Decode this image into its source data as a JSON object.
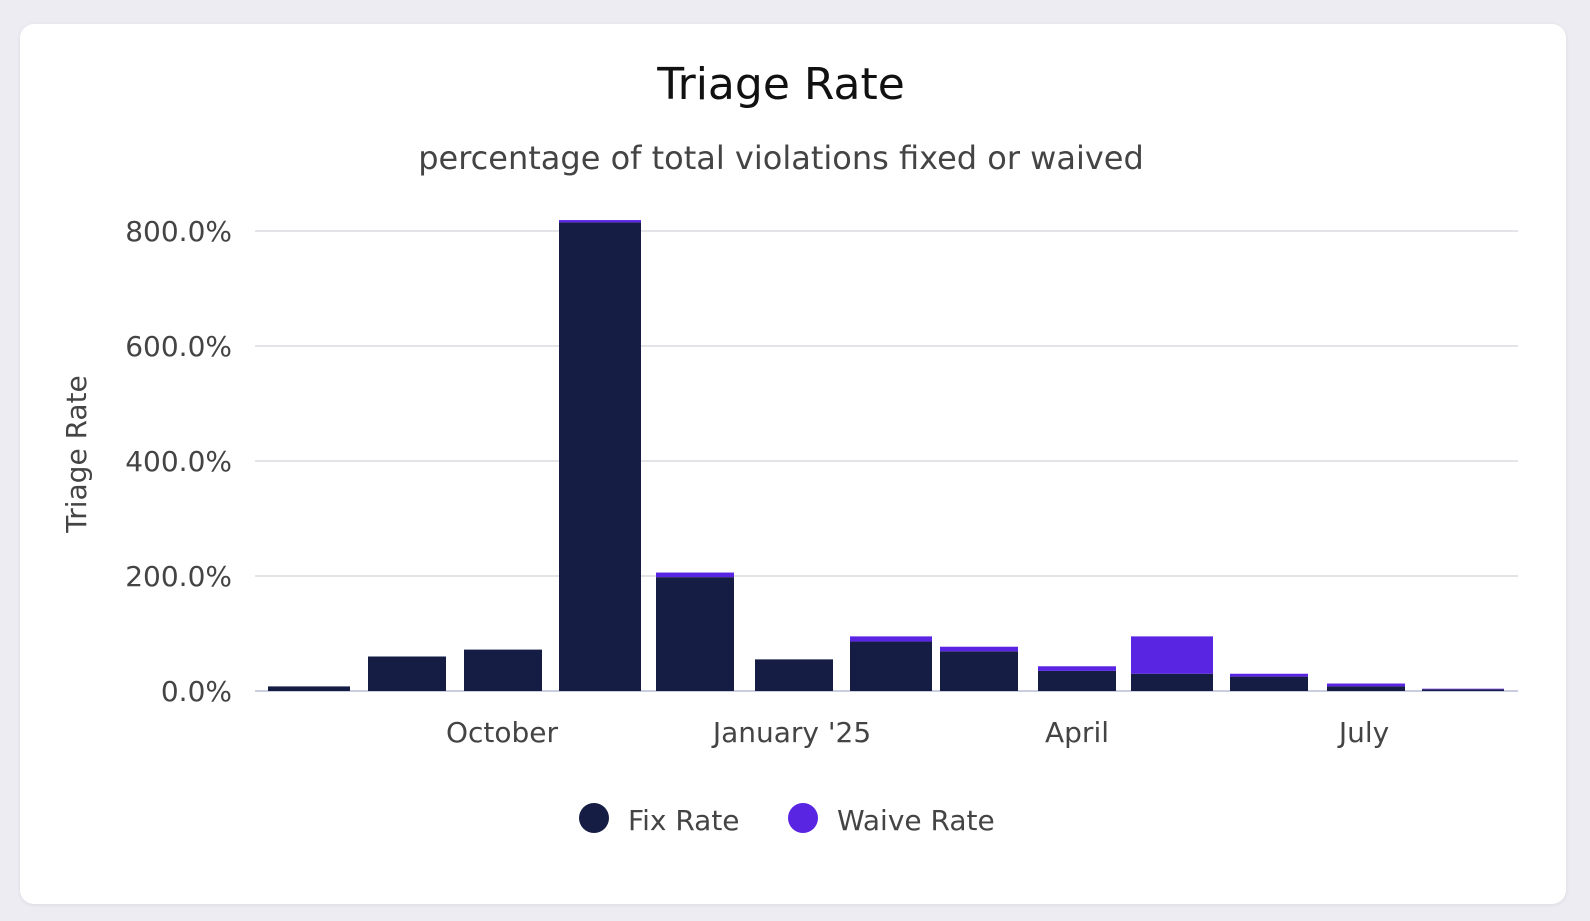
{
  "colors": {
    "fix": "#161d44",
    "waive": "#5a24e3"
  },
  "chart_data": {
    "type": "bar",
    "stacked": true,
    "title": "Triage Rate",
    "subtitle": "percentage of total violations fixed or waived",
    "xlabel": "",
    "ylabel": "Triage Rate",
    "ylim": [
      0,
      800
    ],
    "y_ticks": [
      0,
      200,
      400,
      600,
      800
    ],
    "y_tick_labels": [
      "0.0%",
      "200.0%",
      "400.0%",
      "600.0%",
      "800.0%"
    ],
    "grid": true,
    "legend_position": "bottom",
    "categories": [
      "2024-08",
      "2024-09",
      "2024-10",
      "2024-11",
      "2024-12",
      "2025-01",
      "2025-02",
      "2025-03",
      "2025-04",
      "2025-05",
      "2025-06",
      "2025-07",
      "2025-08"
    ],
    "x_tick_labels": [
      {
        "category": "2024-10",
        "label": "October"
      },
      {
        "category": "2025-01",
        "label": "January '25"
      },
      {
        "category": "2025-04",
        "label": "April"
      },
      {
        "category": "2025-07",
        "label": "July"
      }
    ],
    "series": [
      {
        "name": "Fix Rate",
        "values": [
          8,
          60,
          72,
          815,
          198,
          55,
          86,
          69,
          35,
          30,
          25,
          8,
          3
        ]
      },
      {
        "name": "Waive Rate",
        "values": [
          0,
          0,
          0,
          4,
          8,
          0,
          9,
          8,
          8,
          65,
          5,
          5,
          1
        ]
      }
    ]
  }
}
